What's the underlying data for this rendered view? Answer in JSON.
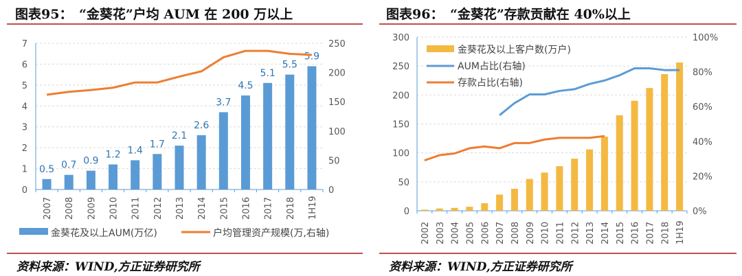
{
  "left": {
    "title": "图表95：　“金葵花”户均 AUM 在 200 万以上",
    "source": "资料来源：WIND,方正证券研究所"
  },
  "right": {
    "title": "图表96：　“金葵花”存款贡献在 40%以上",
    "source": "资料来源：WIND,方正证券研究所"
  },
  "colors": {
    "blue_bar": "#5B9BD5",
    "orange_line": "#ED7D31",
    "gold_bar": "#F4B942",
    "blue_line": "#5B9BD5",
    "label_blue": "#2E75B6",
    "rule_red": "#c0504d"
  },
  "chart_data": [
    {
      "type": "bar+line",
      "categories": [
        "2007",
        "2008",
        "2009",
        "2010",
        "2011",
        "2012",
        "2013",
        "2014",
        "2015",
        "2016",
        "2017",
        "2018",
        "1H19"
      ],
      "series": [
        {
          "name": "金葵花及以上AUM(万亿)",
          "type": "bar",
          "axis": "left",
          "values": [
            0.5,
            0.7,
            0.9,
            1.2,
            1.4,
            1.7,
            2.1,
            2.6,
            3.7,
            4.5,
            5.1,
            5.5,
            5.9
          ],
          "data_labels": [
            "0.5",
            "0.7",
            "0.9",
            "1.2",
            "1.4",
            "1.7",
            "2.1",
            "2.6",
            "3.7",
            "4.5",
            "5.1",
            "5.5",
            "5.9"
          ]
        },
        {
          "name": "户均管理资产规模(万,右轴)",
          "type": "line",
          "axis": "right",
          "values": [
            162,
            167,
            170,
            174,
            183,
            183,
            193,
            202,
            226,
            237,
            237,
            232,
            230
          ]
        }
      ],
      "ylim": [
        0,
        7
      ],
      "yticks": [
        "0",
        "1",
        "2",
        "3",
        "4",
        "5",
        "6",
        "7"
      ],
      "y2lim": [
        0,
        250
      ],
      "y2ticks": [
        "0",
        "50",
        "100",
        "150",
        "200",
        "250"
      ],
      "grid": true,
      "legend": "bottom"
    },
    {
      "type": "bar+line",
      "categories": [
        "2002",
        "2003",
        "2004",
        "2005",
        "2006",
        "2007",
        "2008",
        "2009",
        "2010",
        "2011",
        "2012",
        "2013",
        "2014",
        "2015",
        "2016",
        "2017",
        "2018",
        "1H19"
      ],
      "series": [
        {
          "name": "金葵花及以上客户数(万户)",
          "type": "bar",
          "axis": "left",
          "values": [
            2,
            4,
            5,
            7,
            13,
            28,
            38,
            55,
            66,
            77,
            90,
            106,
            128,
            165,
            190,
            212,
            236,
            256
          ]
        },
        {
          "name": "AUM占比(右轴)",
          "type": "line",
          "axis": "right",
          "values": [
            null,
            null,
            null,
            null,
            null,
            55,
            62,
            67,
            67,
            69,
            70,
            73,
            75,
            78,
            82,
            82,
            81,
            81
          ]
        },
        {
          "name": "存款占比(右轴)",
          "type": "line",
          "axis": "right",
          "values": [
            29,
            32,
            33,
            36,
            37,
            36,
            39,
            39,
            41,
            42,
            42,
            42,
            43,
            null,
            null,
            null,
            null,
            null
          ]
        }
      ],
      "ylim": [
        0,
        300
      ],
      "yticks": [
        "0",
        "50",
        "100",
        "150",
        "200",
        "250",
        "300"
      ],
      "y2lim": [
        0,
        100
      ],
      "y2ticks": [
        "0%",
        "20%",
        "40%",
        "60%",
        "80%",
        "100%"
      ],
      "grid": true,
      "legend": "top-left"
    }
  ]
}
